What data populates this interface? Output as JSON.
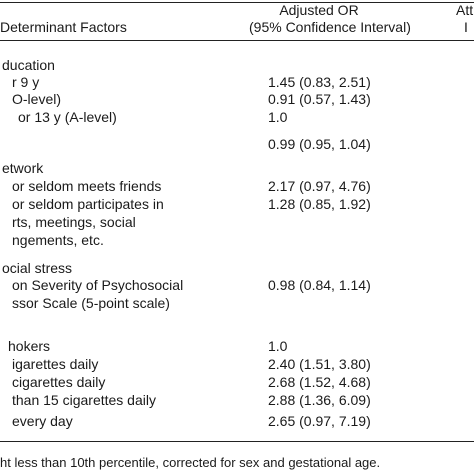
{
  "header": {
    "factors": "Determinant Factors",
    "or_line1": "Adjusted OR",
    "or_line2": "(95% Confidence Interval)",
    "extra_line1": "Att",
    "extra_line2": "I"
  },
  "rows": [
    {
      "label": "ducation"
    },
    {
      "label": "r 9 y",
      "value": "1.45 (0.83, 2.51)"
    },
    {
      "label": "O-level)",
      "value": "0.91 (0.57, 1.43)"
    },
    {
      "label": "or 13 y (A-level)",
      "value": "1.0"
    },
    {
      "value": "0.99 (0.95, 1.04)"
    },
    {
      "label": "etwork"
    },
    {
      "label": "or seldom meets friends",
      "value": "2.17 (0.97, 4.76)"
    },
    {
      "label": "or seldom participates in",
      "value": "1.28 (0.85, 1.92)"
    },
    {
      "label": "rts, meetings, social"
    },
    {
      "label": "ngements, etc."
    },
    {
      "label": "ocial stress"
    },
    {
      "label": "on Severity of Psychosocial",
      "value": "0.98 (0.84, 1.14)"
    },
    {
      "label": "ssor Scale (5-point scale)"
    },
    {
      "label": "hokers",
      "value": "1.0"
    },
    {
      "label": "igarettes daily",
      "value": "2.40 (1.51, 3.80)"
    },
    {
      "label": "cigarettes daily",
      "value": "2.68 (1.52, 4.68)"
    },
    {
      "label": "than 15 cigarettes daily",
      "value": "2.88 (1.36, 6.09)"
    },
    {
      "label": "every day",
      "value": "2.65 (0.97, 7.19)"
    }
  ],
  "footnote": "ht less than 10th percentile, corrected for sex and gestational age."
}
